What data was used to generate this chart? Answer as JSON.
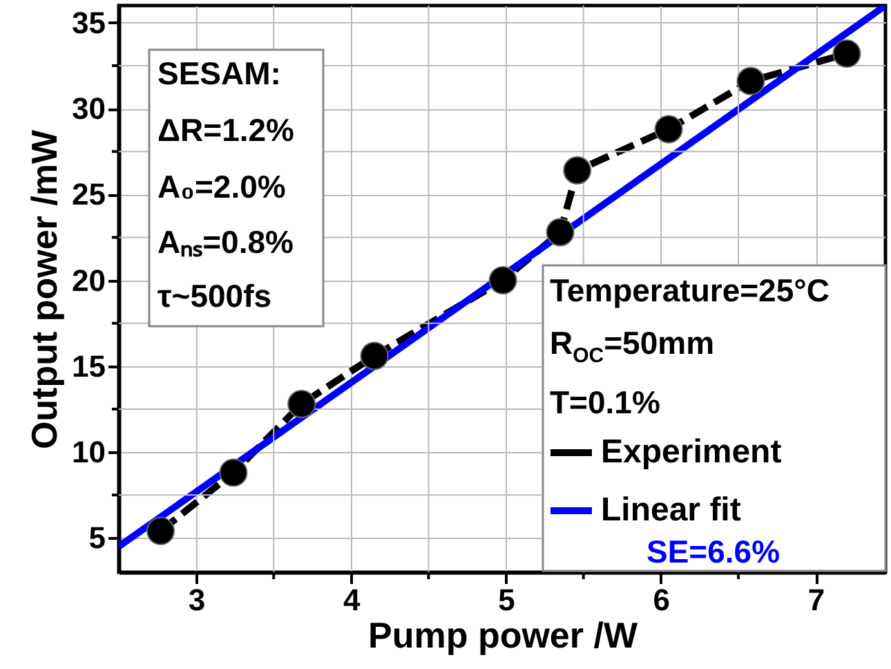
{
  "chart_data": {
    "type": "line",
    "xlabel": "Pump power /W",
    "ylabel": "Output power /mW",
    "xlim": [
      2.5,
      7.45
    ],
    "ylim": [
      3,
      36
    ],
    "xticks": [
      3,
      {
        "value": 3.5,
        "label": null
      },
      4,
      {
        "value": 4.5,
        "label": null
      },
      5,
      {
        "value": 5.5,
        "label": null
      },
      6,
      {
        "value": 6.5,
        "label": null
      },
      7
    ],
    "yticks": [
      5,
      {
        "value": 7.5,
        "label": null
      },
      10,
      {
        "value": 12.5,
        "label": null
      },
      15,
      {
        "value": 17.5,
        "label": null
      },
      20,
      {
        "value": 22.5,
        "label": null
      },
      25,
      {
        "value": 27.5,
        "label": null
      },
      30,
      {
        "value": 32.5,
        "label": null
      },
      35
    ],
    "grid": true,
    "legend": "bottom right",
    "series": [
      {
        "name": "Experiment",
        "color": "#000000",
        "marker": "circle",
        "line_style": "dashed",
        "x": [
          2.77,
          3.24,
          3.68,
          4.15,
          4.98,
          5.35,
          5.46,
          6.05,
          6.58,
          7.2
        ],
        "values": [
          5.4,
          8.8,
          12.8,
          15.6,
          20.0,
          22.8,
          26.4,
          28.8,
          31.6,
          33.2
        ]
      },
      {
        "name": "Linear fit",
        "color": "#0000ff",
        "marker": "none",
        "line_style": "solid",
        "x": [
          2.5,
          7.45
        ],
        "values": [
          4.5,
          36
        ]
      }
    ],
    "annotations": [
      "SESAM:",
      "ΔR=1.2%",
      "A₀=2.0%",
      "Aₙₛ=0.8%",
      "τ~500fs",
      "Temperature=25°C",
      "R$_{OC}$=50mm",
      "T=0.1%",
      "SE=6.6%"
    ]
  }
}
